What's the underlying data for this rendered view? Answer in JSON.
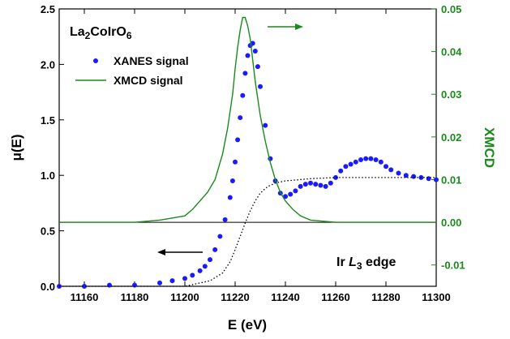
{
  "chart_data": {
    "type": "scatter",
    "x_axis": {
      "label": "E (eV)",
      "range": [
        11150,
        11300
      ],
      "ticks": [
        11160,
        11180,
        11200,
        11220,
        11240,
        11260,
        11280,
        11300
      ]
    },
    "y_left": {
      "label": "μ(E)",
      "range": [
        0.0,
        2.5
      ],
      "ticks": [
        0.0,
        0.5,
        1.0,
        1.5,
        2.0,
        2.5
      ],
      "tick_labels": [
        "0.0",
        "0.5",
        "1.0",
        "1.5",
        "2.0",
        "2.5"
      ],
      "color": "#000000"
    },
    "y_right": {
      "label": "XMCD",
      "range": [
        -0.015,
        0.05
      ],
      "ticks": [
        -0.01,
        0.0,
        0.01,
        0.02,
        0.03,
        0.04,
        0.05
      ],
      "tick_labels": [
        "-0.01",
        "0.00",
        "0.01",
        "0.02",
        "0.03",
        "0.04",
        "0.05"
      ],
      "color": "#1a8a1a"
    },
    "annotations": {
      "sample_base": "La",
      "sample_sub1": "2",
      "sample_mid": "CoIrO",
      "sample_sub2": "6",
      "edge_prefix": "Ir ",
      "edge_italic": "L",
      "edge_sub": "3",
      "edge_suffix": " edge"
    },
    "series": [
      {
        "name": "XANES signal",
        "axis": "left",
        "style": "dots",
        "color": "#1a1aff",
        "x": [
          11150,
          11160,
          11170,
          11180,
          11190,
          11195,
          11200,
          11203,
          11206,
          11208,
          11210,
          11212,
          11214,
          11216,
          11218,
          11219,
          11220,
          11221,
          11222,
          11223,
          11224,
          11225,
          11226,
          11227,
          11228,
          11229,
          11230,
          11232,
          11234,
          11236,
          11238,
          11240,
          11242,
          11244,
          11246,
          11248,
          11250,
          11252,
          11254,
          11256,
          11258,
          11260,
          11262,
          11264,
          11266,
          11268,
          11270,
          11272,
          11274,
          11276,
          11278,
          11280,
          11282,
          11285,
          11288,
          11291,
          11294,
          11297,
          11300
        ],
        "y": [
          0.0,
          0.0,
          0.01,
          0.01,
          0.03,
          0.05,
          0.07,
          0.1,
          0.14,
          0.18,
          0.24,
          0.33,
          0.45,
          0.6,
          0.8,
          0.95,
          1.12,
          1.32,
          1.52,
          1.72,
          1.92,
          2.08,
          2.17,
          2.19,
          2.12,
          1.98,
          1.8,
          1.45,
          1.15,
          0.95,
          0.84,
          0.81,
          0.83,
          0.86,
          0.9,
          0.92,
          0.93,
          0.92,
          0.91,
          0.9,
          0.93,
          0.98,
          1.04,
          1.08,
          1.1,
          1.12,
          1.14,
          1.15,
          1.15,
          1.14,
          1.12,
          1.08,
          1.05,
          1.02,
          1.0,
          0.99,
          0.98,
          0.97,
          0.96
        ]
      },
      {
        "name": "XMCD signal",
        "axis": "right",
        "style": "line",
        "color": "#1a8a1a",
        "x": [
          11150,
          11160,
          11170,
          11180,
          11190,
          11195,
          11200,
          11203,
          11206,
          11209,
          11212,
          11215,
          11217,
          11219,
          11220,
          11221,
          11222,
          11223,
          11224,
          11225,
          11226,
          11227,
          11228,
          11229,
          11230,
          11231,
          11232,
          11234,
          11236,
          11238,
          11240,
          11243,
          11246,
          11250,
          11260,
          11270,
          11280,
          11290,
          11300
        ],
        "y": [
          0.0,
          0.0,
          0.0,
          0.0,
          0.0005,
          0.001,
          0.0015,
          0.003,
          0.005,
          0.007,
          0.01,
          0.016,
          0.022,
          0.03,
          0.036,
          0.041,
          0.045,
          0.048,
          0.048,
          0.046,
          0.043,
          0.038,
          0.033,
          0.029,
          0.025,
          0.022,
          0.019,
          0.014,
          0.01,
          0.007,
          0.005,
          0.003,
          0.0015,
          0.0005,
          0.0,
          0.0,
          0.0,
          0.0,
          0.0
        ]
      },
      {
        "axis": "left",
        "style": "dotted",
        "color": "#000000",
        "x": [
          11150,
          11200,
          11210,
          11215,
          11218,
          11220,
          11222,
          11224,
          11226,
          11228,
          11230,
          11233,
          11236,
          11240,
          11245,
          11250,
          11260,
          11270,
          11280,
          11290,
          11300
        ],
        "y": [
          0.0,
          0.0,
          0.05,
          0.12,
          0.22,
          0.33,
          0.45,
          0.57,
          0.68,
          0.77,
          0.84,
          0.9,
          0.93,
          0.95,
          0.96,
          0.97,
          0.98,
          0.98,
          0.98,
          0.98,
          0.98
        ]
      }
    ],
    "legend": {
      "placement": "top-left"
    },
    "arrows": [
      {
        "direction": "right",
        "axis": "right",
        "color": "#1a8a1a"
      },
      {
        "direction": "left",
        "axis": "left",
        "color": "#000000"
      }
    ]
  }
}
